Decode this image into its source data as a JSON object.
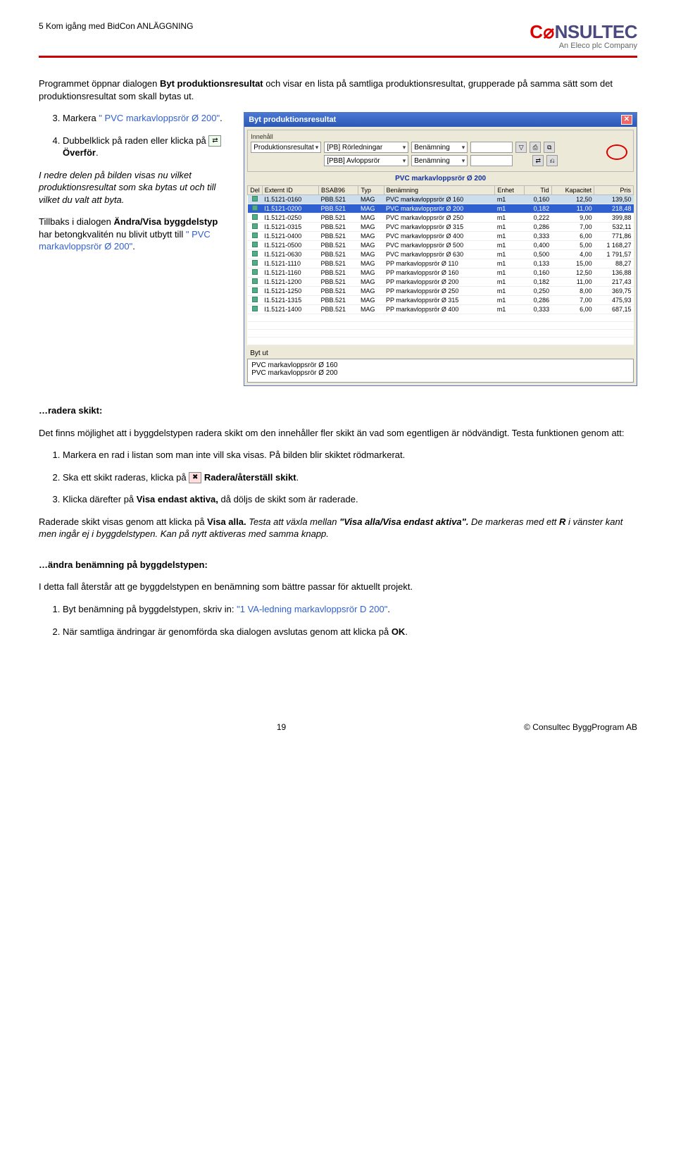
{
  "header": {
    "left": "5 Kom igång med BidCon ANLÄGGNING"
  },
  "logo": {
    "brand_c": "C",
    "brand_o": "⌀",
    "brand_rest": "NSULTEC",
    "sub": "An Eleco plc Company"
  },
  "intro": {
    "p1a": "Programmet öppnar dialogen ",
    "p1b": "Byt produktionsresultat",
    "p1c": " och visar en lista på samtliga produktionsresultat, grupperade på samma sätt som det produktionsresultat som skall bytas ut."
  },
  "left_steps": {
    "s3a": "Markera ",
    "s3b": "\" PVC markavloppsrör Ø 200\"",
    "s3c": ".",
    "s4a": "Dubbelklick på raden eller klicka på ",
    "s4b": "Överför",
    "s4c": ".",
    "note1": "I nedre delen på bilden visas nu vilket produktionsresultat som ska bytas ut och till vilket du valt att byta.",
    "note2a": "Tillbaks i dialogen ",
    "note2b": "Ändra/Visa byggdelstyp",
    "note2c": " har betongkvalitén nu blivit utbytt till ",
    "note2d": "\" PVC markavloppsrör Ø 200\"",
    "note2e": "."
  },
  "dlg": {
    "title": "Byt produktionsresultat",
    "innehall_label": "Innehåll",
    "prod_label": "Produktionsresultat",
    "f_row1_a": "[PB] Rörledningar",
    "f_row1_b": "Benämning",
    "f_row2_a": "[PBB] Avloppsrör",
    "f_row2_b": "Benämning",
    "subhead": "PVC markavloppsrör Ø 200",
    "cols": [
      "Del",
      "Externt ID",
      "BSAB96",
      "Typ",
      "Benämning",
      "Enhet",
      "Tid",
      "Kapacitet",
      "Pris"
    ],
    "rows": [
      [
        "I1.5121-0160",
        "PBB.521",
        "MAG",
        "PVC markavloppsrör Ø 160",
        "m1",
        "0,160",
        "12,50",
        "139,50"
      ],
      [
        "I1.5121-0200",
        "PBB.521",
        "MAG",
        "PVC markavloppsrör Ø 200",
        "m1",
        "0,182",
        "11,00",
        "218,48"
      ],
      [
        "I1.5121-0250",
        "PBB.521",
        "MAG",
        "PVC markavloppsrör Ø 250",
        "m1",
        "0,222",
        "9,00",
        "399,88"
      ],
      [
        "I1.5121-0315",
        "PBB.521",
        "MAG",
        "PVC markavloppsrör Ø 315",
        "m1",
        "0,286",
        "7,00",
        "532,11"
      ],
      [
        "I1.5121-0400",
        "PBB.521",
        "MAG",
        "PVC markavloppsrör Ø 400",
        "m1",
        "0,333",
        "6,00",
        "771,86"
      ],
      [
        "I1.5121-0500",
        "PBB.521",
        "MAG",
        "PVC markavloppsrör Ø 500",
        "m1",
        "0,400",
        "5,00",
        "1 168,27"
      ],
      [
        "I1.5121-0630",
        "PBB.521",
        "MAG",
        "PVC markavloppsrör Ø 630",
        "m1",
        "0,500",
        "4,00",
        "1 791,57"
      ],
      [
        "I1.5121-1110",
        "PBB.521",
        "MAG",
        "PP markavloppsrör Ø 110",
        "m1",
        "0,133",
        "15,00",
        "88,27"
      ],
      [
        "I1.5121-1160",
        "PBB.521",
        "MAG",
        "PP markavloppsrör Ø 160",
        "m1",
        "0,160",
        "12,50",
        "136,88"
      ],
      [
        "I1.5121-1200",
        "PBB.521",
        "MAG",
        "PP markavloppsrör Ø 200",
        "m1",
        "0,182",
        "11,00",
        "217,43"
      ],
      [
        "I1.5121-1250",
        "PBB.521",
        "MAG",
        "PP markavloppsrör Ø 250",
        "m1",
        "0,250",
        "8,00",
        "369,75"
      ],
      [
        "I1.5121-1315",
        "PBB.521",
        "MAG",
        "PP markavloppsrör Ø 315",
        "m1",
        "0,286",
        "7,00",
        "475,93"
      ],
      [
        "I1.5121-1400",
        "PBB.521",
        "MAG",
        "PP markavloppsrör Ø 400",
        "m1",
        "0,333",
        "6,00",
        "687,15"
      ]
    ],
    "selected_row": 0,
    "highlight_row": 1,
    "bytut_label": "Byt ut",
    "bytut_line1": "PVC markavloppsrör Ø 160",
    "bytut_line2": "PVC markavloppsrör Ø 200"
  },
  "radera": {
    "heading": "…radera skikt:",
    "p1": "Det finns möjlighet att i byggdelstypen radera skikt om den innehåller fler skikt än vad som egentligen är nödvändigt. Testa funktionen genom att:",
    "s1": "Markera en rad i listan som man inte vill ska visas. På bilden blir skiktet rödmarkerat.",
    "s2a": "Ska ett skikt raderas, klicka på ",
    "s2b": "Radera/återställ skikt",
    "s2c": ".",
    "s3a": "Klicka därefter på ",
    "s3b": "Visa endast aktiva,",
    "s3c": " då döljs de skikt som är raderade.",
    "p2a": "Raderade skikt visas genom att klicka på ",
    "p2b": "Visa alla.",
    "p2c": " Testa att växla mellan ",
    "p2d": "\"Visa alla/Visa endast aktiva\".",
    "p2e": " De markeras med ett ",
    "p2f": "R",
    "p2g": " i vänster kant men ingår ej i byggdelstypen. Kan på nytt aktiveras med samma knapp."
  },
  "andra": {
    "heading": "…ändra benämning på byggdelstypen:",
    "p1": "I detta fall återstår att ge byggdelstypen en benämning som bättre passar för aktuellt projekt.",
    "s1a": "Byt benämning på byggdelstypen, skriv in: ",
    "s1b": "\"1 VA-ledning markavloppsrör D 200\"",
    "s1c": ".",
    "s2a": "När samtliga ändringar är genomförda ska dialogen avslutas genom att klicka på ",
    "s2b": "OK",
    "s2c": "."
  },
  "footer": {
    "page": "19",
    "copyright": "© Consultec ByggProgram AB"
  }
}
